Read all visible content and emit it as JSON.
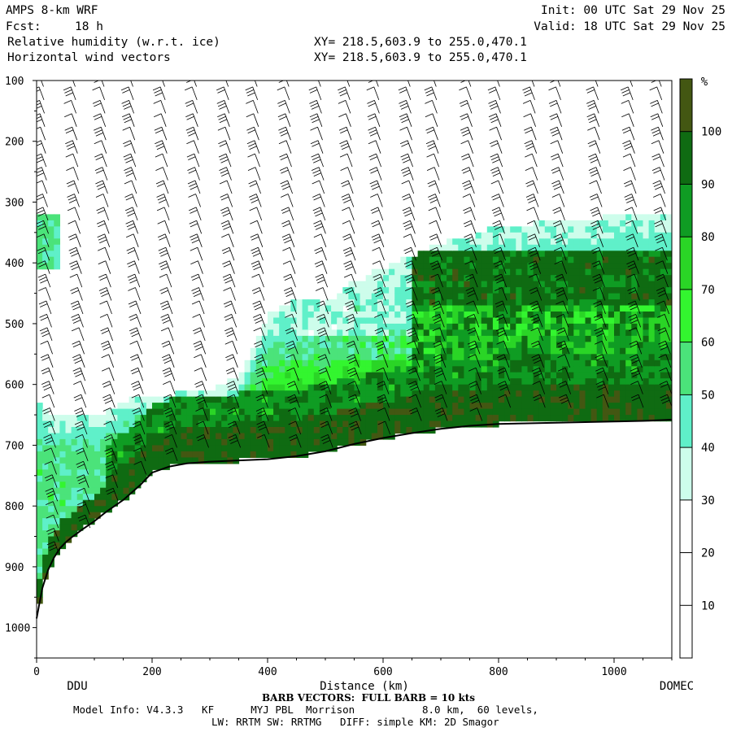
{
  "header": {
    "model": "AMPS 8-km WRF",
    "fcst_label": "Fcst:",
    "fcst_value": "18 h",
    "field1": "Relative humidity (w.r.t. ice)",
    "field2": "Horizontal wind vectors",
    "xy1": "XY= 218.5,603.9 to 255.0,470.1",
    "xy2": "XY= 218.5,603.9 to 255.0,470.1",
    "init": "Init: 00 UTC Sat 29 Nov 25",
    "valid": "Valid: 18 UTC Sat 29 Nov 25"
  },
  "footer": {
    "barb_note": "BARB VECTORS:  FULL BARB = 10 kts",
    "model_info": "Model Info: V4.3.3   KF      MYJ PBL  Morrison           8.0 km,  60 levels,",
    "physics": "LW: RRTM SW: RRTMG   DIFF: simple KM: 2D Smagor"
  },
  "chart_data": {
    "type": "heatmap",
    "title": "Relative humidity (w.r.t. ice) and horizontal wind vectors, cross-section DDU to DOMEC",
    "xlabel": "Distance (km)",
    "ylabel": "Pressure (hPa)",
    "xlim": [
      0,
      1100
    ],
    "ylim": [
      1050,
      100
    ],
    "x_ticks": [
      0,
      200,
      400,
      600,
      800,
      1000
    ],
    "y_ticks": [
      100,
      200,
      300,
      400,
      500,
      600,
      700,
      800,
      900,
      1000
    ],
    "x_endpoints": {
      "left": "DDU",
      "right": "DOMEC"
    },
    "colorbar": {
      "unit": "%",
      "levels": [
        10,
        20,
        30,
        40,
        50,
        60,
        70,
        80,
        90,
        100
      ],
      "colors": [
        "#ffffff",
        "#ffffff",
        "#ffffff",
        "#cdfdeb",
        "#5ff0c9",
        "#4be37a",
        "#33f52f",
        "#2ad526",
        "#0f9c23",
        "#0f6b12",
        "#435712"
      ]
    },
    "terrain_surface": {
      "distance_km": [
        0,
        5,
        10,
        20,
        30,
        40,
        50,
        60,
        70,
        80,
        100,
        120,
        150,
        180,
        200,
        230,
        260,
        300,
        350,
        400,
        450,
        500,
        550,
        600,
        650,
        700,
        750,
        800,
        850,
        900,
        950,
        1000,
        1050,
        1100
      ],
      "pressure_hpa": [
        985,
        960,
        935,
        905,
        885,
        870,
        860,
        852,
        845,
        838,
        825,
        810,
        790,
        765,
        745,
        735,
        730,
        727,
        725,
        723,
        718,
        710,
        698,
        688,
        680,
        673,
        668,
        665,
        664,
        663,
        662,
        661,
        660,
        658
      ]
    },
    "moist_layer_top": {
      "distance_km": [
        0,
        30,
        60,
        100,
        150,
        200,
        260,
        300,
        350,
        400,
        450,
        500,
        550,
        600,
        650,
        700,
        750,
        800,
        850,
        900,
        950,
        1000,
        1050,
        1100
      ],
      "pressure_hpa": [
        640,
        665,
        660,
        665,
        640,
        630,
        625,
        620,
        600,
        500,
        470,
        480,
        440,
        420,
        400,
        380,
        370,
        350,
        350,
        340,
        340,
        335,
        335,
        330
      ]
    },
    "wind_barb_columns_km": [
      20,
      75,
      125,
      175,
      230,
      285,
      340,
      390,
      445,
      500,
      550,
      600,
      655,
      700,
      760,
      810,
      870,
      915,
      980,
      1040,
      1090
    ]
  }
}
